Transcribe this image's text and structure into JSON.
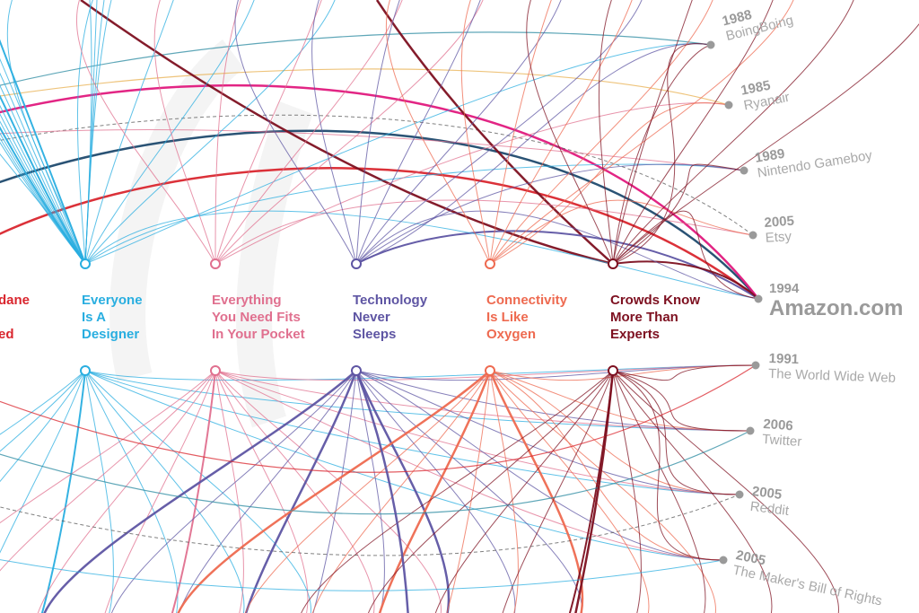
{
  "colors": {
    "red": "#d9262e",
    "cyan": "#29aee0",
    "pink": "#e0708f",
    "purple": "#5e55a3",
    "orange": "#ee6a50",
    "maroon": "#7d1020",
    "magenta": "#e0197d",
    "navy": "#1f4a6e",
    "node_gray": "#9a9a9a"
  },
  "themes": [
    {
      "label": "dane\n\ned",
      "color": "#d9262e"
    },
    {
      "label": "Everyone\nIs A\nDesigner",
      "color": "#29aee0"
    },
    {
      "label": "Everything\nYou Need Fits\nIn Your Pocket",
      "color": "#e0708f"
    },
    {
      "label": "Technology\nNever\nSleeps",
      "color": "#5e55a3"
    },
    {
      "label": "Connectivity\nIs Like\nOxygen",
      "color": "#ee6a50"
    },
    {
      "label": "Crowds Know\nMore Than\nExperts",
      "color": "#7d1020"
    }
  ],
  "companies": [
    {
      "year": "1988",
      "name": "BoingBoing"
    },
    {
      "year": "1985",
      "name": "Ryanair"
    },
    {
      "year": "1989",
      "name": "Nintendo Gameboy"
    },
    {
      "year": "2005",
      "name": "Etsy"
    },
    {
      "year": "1994",
      "name": "Amazon.com"
    },
    {
      "year": "1991",
      "name": "The World Wide Web"
    },
    {
      "year": "2006",
      "name": "Twitter"
    },
    {
      "year": "2005",
      "name": "Reddit"
    },
    {
      "year": "2005",
      "name": "The Maker's Bill of Rights"
    }
  ]
}
